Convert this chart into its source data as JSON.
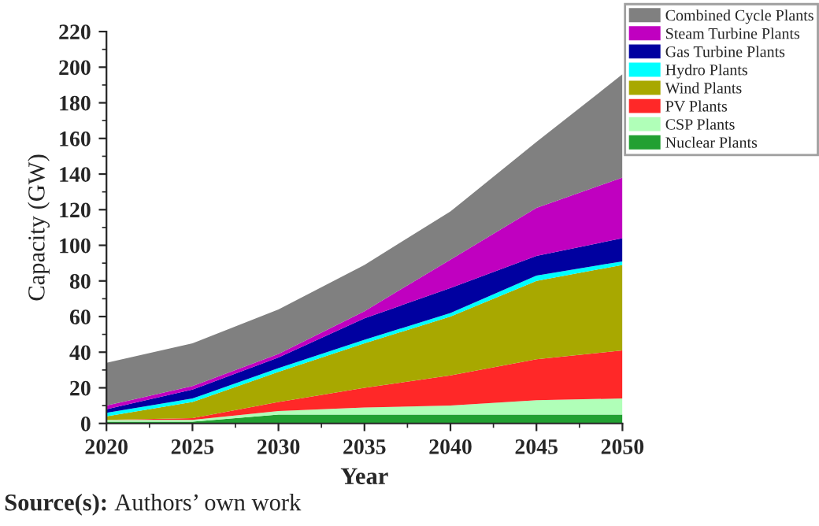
{
  "chart_data": {
    "type": "area",
    "stacked": true,
    "xlabel": "Year",
    "ylabel": "Capacity (GW)",
    "x": [
      2020,
      2025,
      2030,
      2035,
      2040,
      2045,
      2050
    ],
    "series": [
      {
        "name": "Nuclear Plants",
        "color": "#22a032",
        "values": [
          1,
          1,
          5,
          5,
          5,
          5,
          5
        ]
      },
      {
        "name": "CSP Plants",
        "color": "#b0ffb8",
        "values": [
          1,
          1,
          2,
          4,
          5,
          8,
          9
        ]
      },
      {
        "name": "PV Plants",
        "color": "#ff2828",
        "values": [
          0,
          1,
          5,
          11,
          17,
          23,
          27
        ]
      },
      {
        "name": "Wind Plants",
        "color": "#a8a800",
        "values": [
          2,
          9,
          17,
          25,
          33,
          44,
          48
        ]
      },
      {
        "name": "Hydro Plants",
        "color": "#00ffff",
        "values": [
          2,
          2,
          2,
          2,
          2,
          3,
          2
        ]
      },
      {
        "name": "Gas Turbine Plants",
        "color": "#0000a0",
        "values": [
          2,
          5,
          6,
          12,
          14,
          11,
          13
        ]
      },
      {
        "name": "Steam Turbine Plants",
        "color": "#c000c0",
        "values": [
          2,
          2,
          2,
          4,
          16,
          27,
          34
        ]
      },
      {
        "name": "Combined Cycle Plants",
        "color": "#808080",
        "values": [
          24,
          24,
          25,
          26,
          27,
          37,
          58
        ]
      }
    ],
    "xlim": [
      2020,
      2050
    ],
    "xticks": [
      2020,
      2025,
      2030,
      2035,
      2040,
      2045,
      2050
    ],
    "ylim": [
      0,
      220
    ],
    "yticks": [
      0,
      20,
      40,
      60,
      80,
      100,
      120,
      140,
      160,
      180,
      200,
      220
    ],
    "grid": false,
    "legend": "top right",
    "annotations": [
      "Source(s): Authors’ own work"
    ]
  }
}
